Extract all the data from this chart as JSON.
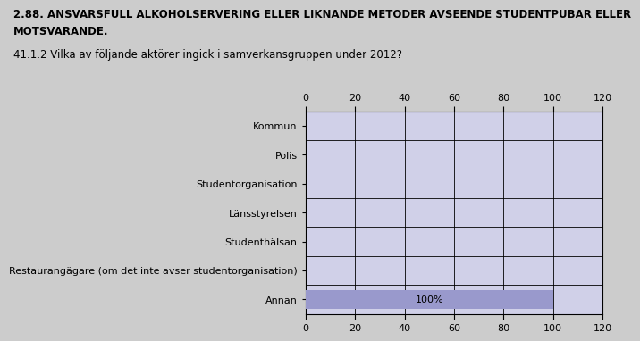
{
  "title_line1": "2.88. ANSVARSFULL ALKOHOLSERVERING ELLER LIKNANDE METODER AVSEENDE STUDENTPUBAR ELLER",
  "title_line2": "MOTSVARANDE.",
  "subtitle": "41.1.2 Vilka av följande aktörer ingick i samverkansgruppen under 2012?",
  "categories": [
    "Kommun",
    "Polis",
    "Studentorganisation",
    "Länsstyrelsen",
    "Studenthälsan",
    "Restaurangägare (om det inte avser studentorganisation)",
    "Annan"
  ],
  "values": [
    0,
    0,
    0,
    0,
    0,
    0,
    100
  ],
  "bar_color": "#9999cc",
  "plot_bg_color": "#d0d0e8",
  "background_color": "#cccccc",
  "xlim": [
    0,
    120
  ],
  "xticks": [
    0,
    20,
    40,
    60,
    80,
    100,
    120
  ],
  "label_100": "100%",
  "title_fontsize": 8.5,
  "subtitle_fontsize": 8.5,
  "tick_fontsize": 8,
  "bar_label_fontsize": 8
}
